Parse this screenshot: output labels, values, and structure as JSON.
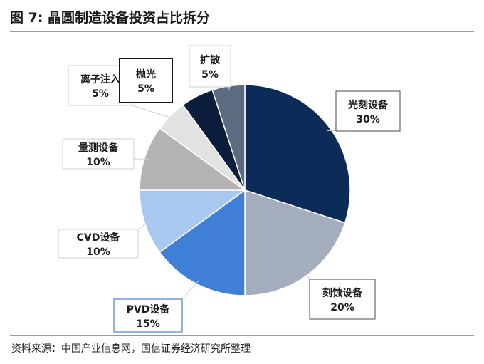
{
  "title": "图 7: 晶圆制造设备投资占比拆分",
  "source": "资料来源：中国产业信息网，国信证券经济研究所整理",
  "chart_data": {
    "type": "pie",
    "title": "图 7: 晶圆制造设备投资占比拆分",
    "slices": [
      {
        "label": "光刻设备",
        "value": 30,
        "value_label": "30%",
        "color": "#0d2b58"
      },
      {
        "label": "刻蚀设备",
        "value": 20,
        "value_label": "20%",
        "color": "#a4adbb"
      },
      {
        "label": "PVD设备",
        "value": 15,
        "value_label": "15%",
        "color": "#3f7fd6"
      },
      {
        "label": "CVD设备",
        "value": 10,
        "value_label": "10%",
        "color": "#a9c8ef"
      },
      {
        "label": "量测设备",
        "value": 10,
        "value_label": "10%",
        "color": "#b3b3b3"
      },
      {
        "label": "离子注入",
        "value": 5,
        "value_label": "5%",
        "color": "#e2e2e2"
      },
      {
        "label": "抛光",
        "value": 5,
        "value_label": "5%",
        "color": "#0b1d3b"
      },
      {
        "label": "扩散",
        "value": 5,
        "value_label": "5%",
        "color": "#5d6b80"
      }
    ]
  }
}
